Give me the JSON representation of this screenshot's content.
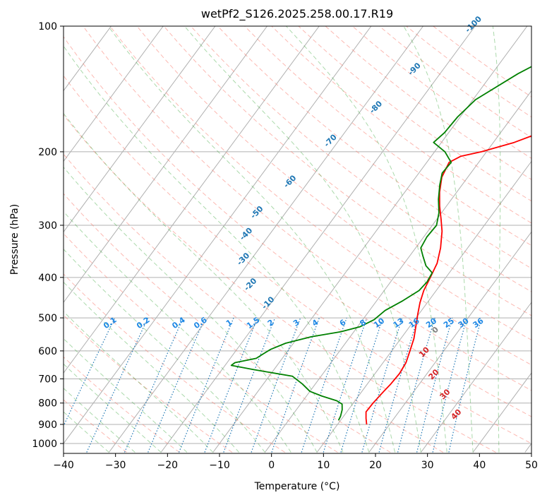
{
  "chart_data": {
    "type": "line",
    "title": "wetPf2_S126.2025.258.00.17.R19",
    "xlabel": "Temperature (°C)",
    "ylabel": "Pressure (hPa)",
    "xlim": [
      -40,
      50
    ],
    "ylim": [
      1050,
      100
    ],
    "y_scale": "log",
    "x_ticks": [
      "-40",
      "-30",
      "-20",
      "-10",
      "0",
      "10",
      "20",
      "30",
      "40",
      "50"
    ],
    "y_ticks": [
      "100",
      "200",
      "300",
      "400",
      "500",
      "600",
      "700",
      "800",
      "900",
      "1000"
    ],
    "skew_diagram": true,
    "grid": true,
    "series": [
      {
        "role": "temperature",
        "color": "#ff0000",
        "points": [
          {
            "p": 900,
            "t": 15.6
          },
          {
            "p": 870,
            "t": 14.6
          },
          {
            "p": 840,
            "t": 13.7
          },
          {
            "p": 800,
            "t": 13.8
          },
          {
            "p": 750,
            "t": 14.2
          },
          {
            "p": 720,
            "t": 14.5
          },
          {
            "p": 680,
            "t": 14.7
          },
          {
            "p": 640,
            "t": 14.4
          },
          {
            "p": 600,
            "t": 13.5
          },
          {
            "p": 560,
            "t": 12.5
          },
          {
            "p": 520,
            "t": 11.0
          },
          {
            "p": 490,
            "t": 9.8
          },
          {
            "p": 460,
            "t": 8.6
          },
          {
            "p": 430,
            "t": 7.6
          },
          {
            "p": 400,
            "t": 7.0
          },
          {
            "p": 370,
            "t": 6.3
          },
          {
            "p": 340,
            "t": 4.8
          },
          {
            "p": 310,
            "t": 2.7
          },
          {
            "p": 290,
            "t": 0.8
          },
          {
            "p": 270,
            "t": -1.3
          },
          {
            "p": 250,
            "t": -3.3
          },
          {
            "p": 230,
            "t": -5.0
          },
          {
            "p": 212,
            "t": -5.7
          },
          {
            "p": 205,
            "t": -4.3
          },
          {
            "p": 200,
            "t": -1.0
          },
          {
            "p": 190,
            "t": 4.0
          },
          {
            "p": 175,
            "t": 9.5
          },
          {
            "p": 160,
            "t": 14.0
          },
          {
            "p": 145,
            "t": 17.3
          },
          {
            "p": 130,
            "t": 19.5
          },
          {
            "p": 115,
            "t": 22.5
          },
          {
            "p": 103,
            "t": 27.0
          },
          {
            "p": 100,
            "t": 28.5
          }
        ]
      },
      {
        "role": "dewpoint",
        "color": "#008000",
        "points": [
          {
            "p": 880,
            "t": 9.6
          },
          {
            "p": 860,
            "t": 9.4
          },
          {
            "p": 830,
            "t": 8.8
          },
          {
            "p": 805,
            "t": 8.0
          },
          {
            "p": 790,
            "t": 6.5
          },
          {
            "p": 770,
            "t": 3.0
          },
          {
            "p": 750,
            "t": 0.0
          },
          {
            "p": 720,
            "t": -2.5
          },
          {
            "p": 690,
            "t": -5.5
          },
          {
            "p": 665,
            "t": -14.0
          },
          {
            "p": 650,
            "t": -18.8
          },
          {
            "p": 640,
            "t": -18.5
          },
          {
            "p": 625,
            "t": -15.0
          },
          {
            "p": 610,
            "t": -14.3
          },
          {
            "p": 595,
            "t": -13.5
          },
          {
            "p": 575,
            "t": -11.5
          },
          {
            "p": 555,
            "t": -7.5
          },
          {
            "p": 540,
            "t": -2.5
          },
          {
            "p": 525,
            "t": 0.5
          },
          {
            "p": 505,
            "t": 2.2
          },
          {
            "p": 480,
            "t": 3.0
          },
          {
            "p": 455,
            "t": 5.0
          },
          {
            "p": 430,
            "t": 6.7
          },
          {
            "p": 410,
            "t": 7.0
          },
          {
            "p": 390,
            "t": 6.7
          },
          {
            "p": 375,
            "t": 4.5
          },
          {
            "p": 355,
            "t": 2.5
          },
          {
            "p": 340,
            "t": 1.0
          },
          {
            "p": 320,
            "t": 0.6
          },
          {
            "p": 300,
            "t": 0.8
          },
          {
            "p": 280,
            "t": -0.5
          },
          {
            "p": 260,
            "t": -2.5
          },
          {
            "p": 240,
            "t": -4.3
          },
          {
            "p": 225,
            "t": -5.5
          },
          {
            "p": 212,
            "t": -5.3
          },
          {
            "p": 200,
            "t": -8.0
          },
          {
            "p": 190,
            "t": -11.5
          },
          {
            "p": 180,
            "t": -10.8
          },
          {
            "p": 165,
            "t": -10.5
          },
          {
            "p": 150,
            "t": -9.5
          },
          {
            "p": 130,
            "t": -5.0
          },
          {
            "p": 115,
            "t": 0.0
          },
          {
            "p": 100,
            "t": 5.5
          }
        ]
      }
    ],
    "mixing_ratio_labels": [
      "0.1",
      "0.2",
      "0.4",
      "0.6",
      "1",
      "1.5",
      "2",
      "3",
      "4",
      "6",
      "8",
      "10",
      "13",
      "16",
      "20",
      "25",
      "30",
      "36"
    ],
    "moist_adiabat_labels": [
      "-100",
      "-90",
      "-80",
      "-70",
      "-60",
      "-50",
      "-40",
      "-30",
      "-20",
      "-10",
      "0",
      "10",
      "20",
      "30",
      "40"
    ],
    "colors": {
      "temperature": "#ff0000",
      "dewpoint": "#008000",
      "grid": "#b0b0b0",
      "dry_adiabat": "#fa8072",
      "moist_adiabat": "#2ca02c",
      "mixing_ratio": "#1f77b4",
      "mixing_label": "#1e88e5",
      "moist_label_cold": "#1f77b4",
      "moist_label_zero": "#808080",
      "moist_label_warm": "#d62728",
      "std_atmos": "#d2b48c"
    }
  }
}
